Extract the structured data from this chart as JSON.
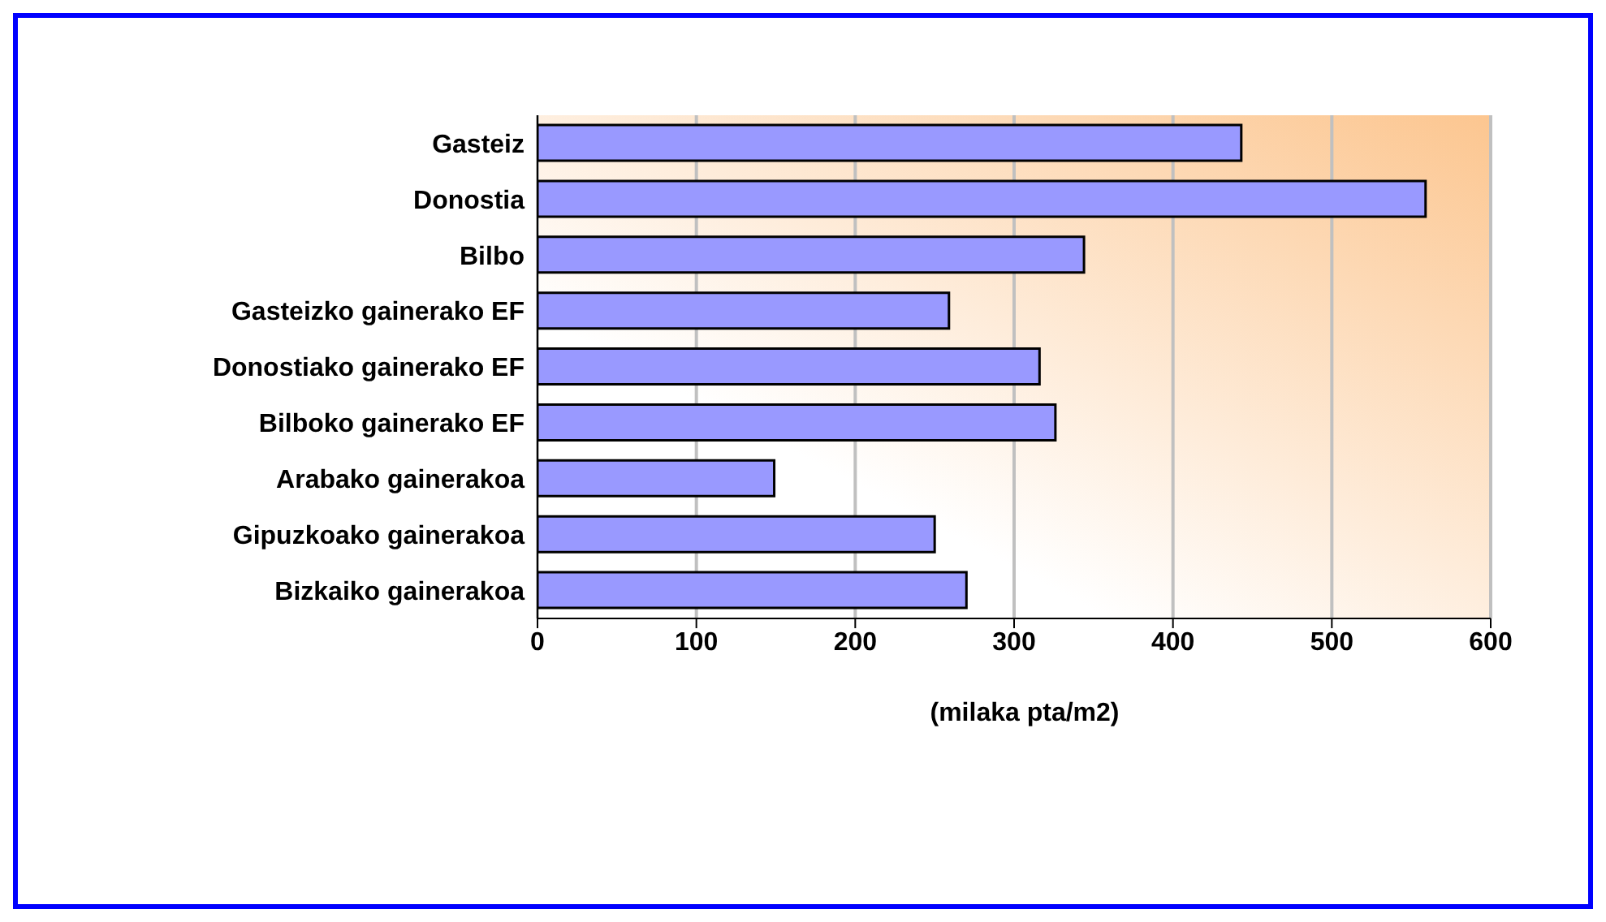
{
  "chart_data": {
    "type": "bar",
    "orientation": "horizontal",
    "xlabel": "(milaka pta/m2)",
    "categories": [
      "Gasteiz",
      "Donostia",
      "Bilbo",
      "Gasteizko gainerako EF",
      "Donostiako gainerako EF",
      "Bilboko gainerako EF",
      "Arabako gainerakoa",
      "Gipuzkoako gainerakoa",
      "Bizkaiko gainerakoa"
    ],
    "values": [
      443,
      559,
      344,
      259,
      316,
      326,
      149,
      250,
      270
    ],
    "color": "#9999ff",
    "xlim": [
      0,
      600
    ],
    "xticks": [
      0,
      100,
      200,
      300,
      400,
      500,
      600
    ],
    "grid": "x"
  }
}
